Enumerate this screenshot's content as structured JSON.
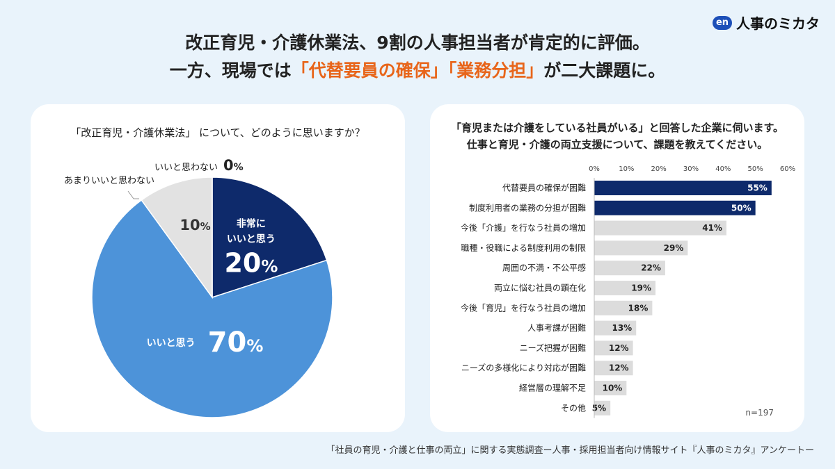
{
  "brand": {
    "mark": "en",
    "name": "人事のミカタ"
  },
  "headline": {
    "line1": "改正育児・介護休業法、9割の人事担当者が肯定的に評価。",
    "line2_pre": "一方、現場では",
    "line2_hl1": "「代替要員の確保」",
    "line2_hl2": "「業務分担」",
    "line2_post": "が二大課題に。"
  },
  "colors": {
    "dark_navy": "#0e2a6b",
    "blue": "#4d93d9",
    "gray": "#e2e2e2",
    "highlight": "#e8651a"
  },
  "chart_data": [
    {
      "type": "pie",
      "title": "「改正育児・介護休業法」 について、どのように思いますか？",
      "slices": [
        {
          "label": "非常にいいと思う",
          "label_line1": "非常に",
          "label_line2": "いいと思う",
          "value": 20,
          "display": "20",
          "color": "#0e2a6b"
        },
        {
          "label": "いいと思う",
          "value": 70,
          "display": "70",
          "color": "#4d93d9"
        },
        {
          "label": "あまりいいと思わない",
          "value": 10,
          "display": "10",
          "color": "#e2e2e2"
        },
        {
          "label": "いいと思わない",
          "value": 0,
          "display": "0",
          "color": "#e2e2e2"
        }
      ],
      "unit": "%"
    },
    {
      "type": "bar",
      "orientation": "horizontal",
      "title_line1": "「育児または介護をしている社員がいる」と回答した企業に伺います。",
      "title_line2": "仕事と育児・介護の両立支援について、課題を教えてください。",
      "xlim": [
        0,
        60
      ],
      "ticks": [
        "0%",
        "10%",
        "20%",
        "30%",
        "40%",
        "50%",
        "60%"
      ],
      "categories": [
        "代替要員の確保が困難",
        "制度利用者の業務の分担が困難",
        "今後「介護」を行なう社員の増加",
        "職種・役職による制度利用の制限",
        "周囲の不満・不公平感",
        "両立に悩む社員の顕在化",
        "今後「育児」を行なう社員の増加",
        "人事考課が困難",
        "ニーズ把握が困難",
        "ニーズの多様化により対応が困難",
        "経営層の理解不足",
        "その他"
      ],
      "values": [
        55,
        50,
        41,
        29,
        22,
        19,
        18,
        13,
        12,
        12,
        10,
        5
      ],
      "value_labels": [
        "55%",
        "50%",
        "41%",
        "29%",
        "22%",
        "19%",
        "18%",
        "13%",
        "12%",
        "12%",
        "10%",
        "5%"
      ],
      "highlight_count": 2,
      "n_label": "n=197"
    }
  ],
  "footnote": "「社員の育児・介護と仕事の両立」に関する実態調査ー人事・採用担当者向け情報サイト『人事のミカタ』アンケートー"
}
